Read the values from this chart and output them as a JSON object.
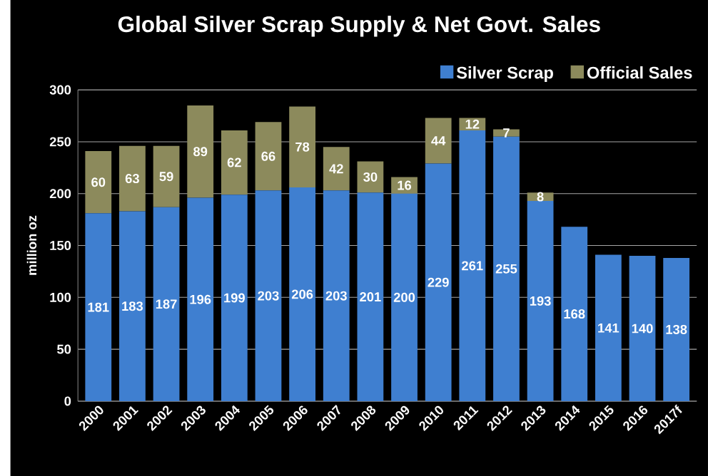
{
  "chart_data": {
    "type": "bar",
    "title": "Global Silver Scrap Supply & Net Govt. Sales",
    "ylabel": "million oz",
    "categories": [
      "2000",
      "2001",
      "2002",
      "2003",
      "2004",
      "2005",
      "2006",
      "2007",
      "2008",
      "2009",
      "2010",
      "2011",
      "2012",
      "2013",
      "2014",
      "2015",
      "2016",
      "2017f"
    ],
    "series": [
      {
        "name": "Silver Scrap",
        "color": "#3f7fd0",
        "values": [
          181,
          183,
          187,
          196,
          199,
          203,
          206,
          203,
          201,
          200,
          229,
          261,
          255,
          193,
          168,
          141,
          140,
          138
        ]
      },
      {
        "name": "Official Sales",
        "color": "#8c8a5c",
        "values": [
          60,
          63,
          59,
          89,
          62,
          66,
          78,
          42,
          30,
          16,
          44,
          12,
          7,
          8,
          null,
          null,
          null,
          null
        ]
      }
    ],
    "stacked": true,
    "data_labels": true,
    "ylim": [
      0,
      300
    ],
    "yticks": [
      0,
      50,
      100,
      150,
      200,
      250,
      300
    ],
    "grid": "y",
    "legend": "top right"
  }
}
